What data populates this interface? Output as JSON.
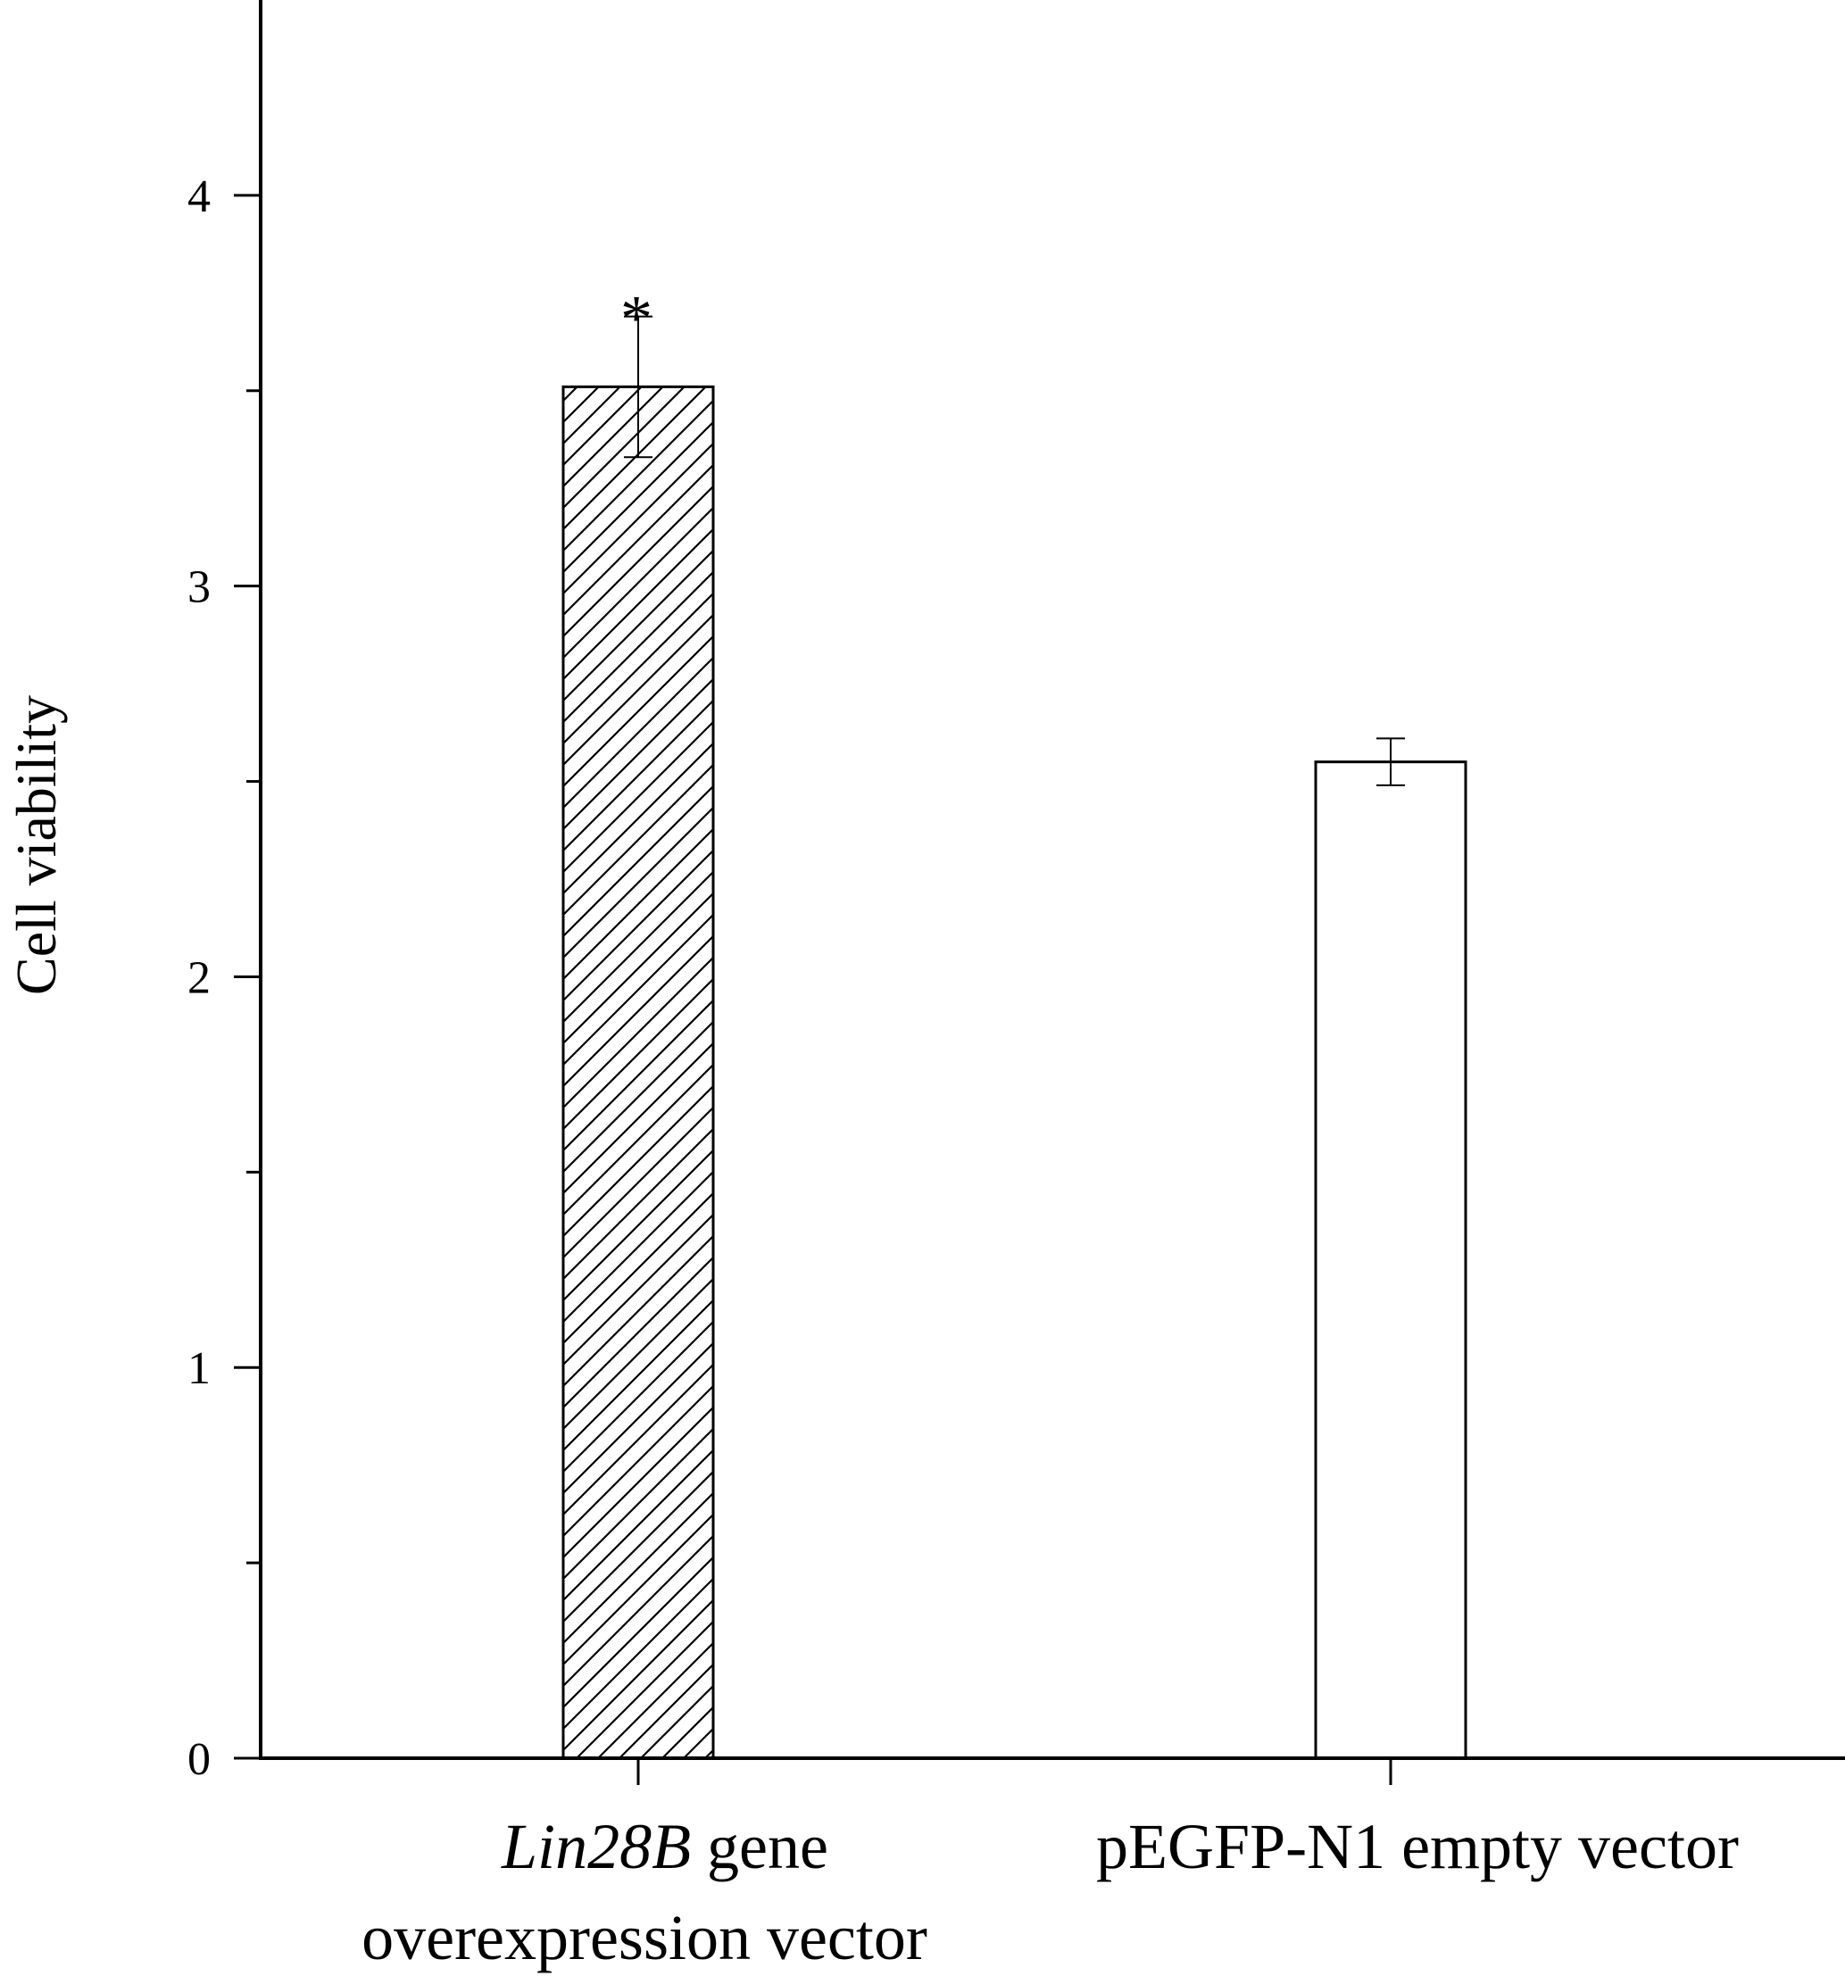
{
  "chart_data": {
    "type": "bar",
    "ylabel": "Cell viability",
    "xlabel": "",
    "ylim": [
      0,
      4.5
    ],
    "yticks": [
      "0",
      "1",
      "2",
      "3",
      "4"
    ],
    "grid": false,
    "categories": [
      {
        "label_italic": "Lin28B",
        "label_rest": " gene",
        "label_line2": "overexpression vector",
        "value": 3.51,
        "error": 0.18,
        "pattern": "hatched",
        "significance": "*"
      },
      {
        "label_italic": "",
        "label_rest": "pEGFP-N1 empty vector",
        "label_line2": "",
        "value": 2.55,
        "error": 0.06,
        "pattern": "open",
        "significance": ""
      }
    ],
    "colors": {
      "bar_stroke": "#000000",
      "bar_fill_open": "#ffffff",
      "hatch": "#000000"
    }
  }
}
